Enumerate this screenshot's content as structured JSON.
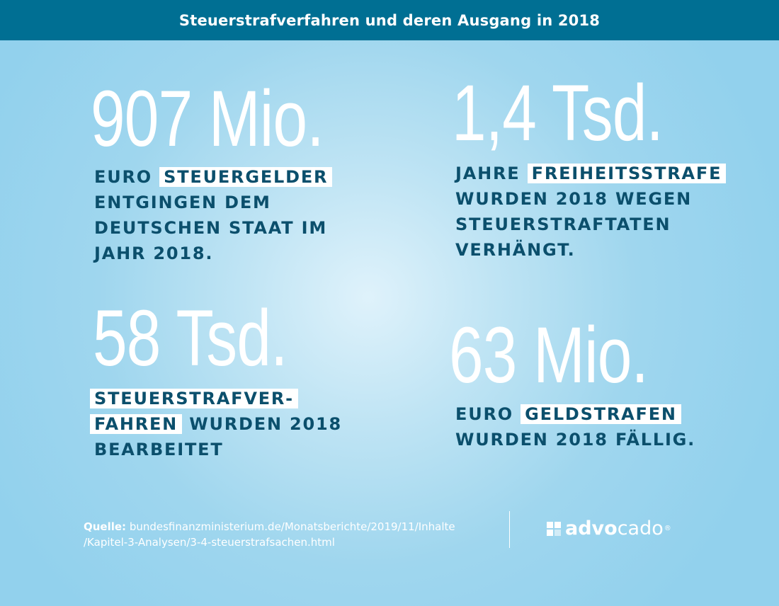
{
  "header": {
    "title": "Steuerstrafverfahren und deren Ausgang in 2018"
  },
  "stats": [
    {
      "value": "907 Mio.",
      "line1_pre": "Euro ",
      "line1_hl": "Steuergelder",
      "line2": "entgingen dem",
      "line3": "deutschen Staat im",
      "line4": "Jahr 2018."
    },
    {
      "value": "1,4 Tsd.",
      "line1_pre": "Jahre ",
      "line1_hl": "Freiheitsstrafe",
      "line2": "wurden 2018 wegen",
      "line3": "Steuerstraftaten",
      "line4": "verhängt."
    },
    {
      "value": "58 Tsd.",
      "line1_hl": "Steuerstrafver-",
      "line2_hl": "fahren",
      "line2_post": " wurden 2018",
      "line3": "bearbeitet"
    },
    {
      "value": "63 Mio.",
      "line1_pre": "Euro ",
      "line1_hl": "Geldstrafen",
      "line2": "wurden 2018 fällig."
    }
  ],
  "source": {
    "label": "Quelle:",
    "line1": " bundesfinanzministerium.de/Monatsberichte/2019/11/Inhalte",
    "line2": "/Kapitel-3-Analysen/3-4-steuerstrafsachen.html"
  },
  "logo": {
    "text_pre": "advo",
    "text_post": "cado",
    "mark": "®",
    "icon": "advocado-logo-icon"
  },
  "colors": {
    "header_bg": "#006f93",
    "text_dark": "#0b4f6c",
    "bg_light": "#9fd6ee"
  }
}
